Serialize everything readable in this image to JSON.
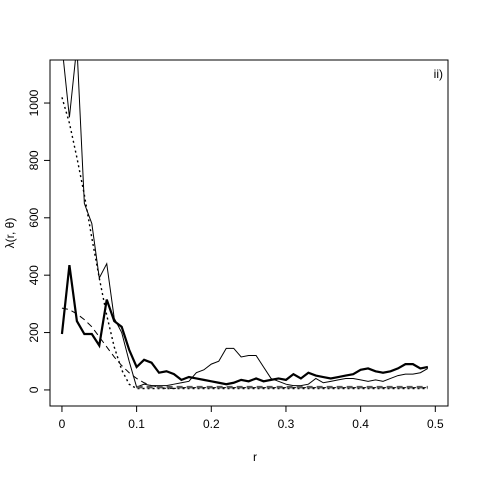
{
  "chart_data": {
    "type": "line",
    "x_label": "r",
    "y_label": "λ(r, θ)",
    "annotation": "ii)",
    "x": [
      0,
      0.01,
      0.02,
      0.03,
      0.04,
      0.05,
      0.06,
      0.07,
      0.08,
      0.09,
      0.1,
      0.11,
      0.12,
      0.13,
      0.14,
      0.15,
      0.16,
      0.17,
      0.18,
      0.19,
      0.2,
      0.21,
      0.22,
      0.23,
      0.24,
      0.25,
      0.26,
      0.27,
      0.28,
      0.29,
      0.3,
      0.31,
      0.32,
      0.33,
      0.34,
      0.35,
      0.36,
      0.37,
      0.38,
      0.39,
      0.4,
      0.41,
      0.42,
      0.43,
      0.44,
      0.45,
      0.46,
      0.47,
      0.48,
      0.49
    ],
    "series": [
      {
        "color": "#000000",
        "width": 1,
        "dash": "none",
        "values": [
          1200,
          950,
          1200,
          650,
          580,
          390,
          440,
          250,
          200,
          100,
          10,
          20,
          15,
          15,
          15,
          20,
          25,
          30,
          60,
          70,
          90,
          100,
          145,
          145,
          115,
          120,
          120,
          80,
          40,
          30,
          20,
          15,
          15,
          20,
          40,
          25,
          30,
          35,
          40,
          40,
          35,
          30,
          35,
          30,
          40,
          50,
          55,
          55,
          60,
          75
        ]
      },
      {
        "color": "#000000",
        "width": 2.2,
        "dash": "none",
        "values": [
          195,
          435,
          240,
          195,
          195,
          155,
          315,
          240,
          220,
          140,
          80,
          105,
          95,
          60,
          65,
          55,
          35,
          45,
          40,
          35,
          30,
          25,
          20,
          25,
          35,
          30,
          40,
          30,
          35,
          40,
          35,
          55,
          40,
          60,
          50,
          45,
          40,
          45,
          50,
          55,
          70,
          75,
          65,
          60,
          65,
          75,
          90,
          90,
          75,
          80
        ]
      },
      {
        "color": "#000000",
        "width": 1.4,
        "dash": "2 3",
        "values": [
          1020,
          930,
          810,
          680,
          530,
          390,
          260,
          150,
          70,
          20,
          5,
          5,
          5,
          5,
          5,
          5,
          5,
          5,
          5,
          5,
          5,
          5,
          5,
          5,
          5,
          5,
          5,
          5,
          5,
          5,
          5,
          5,
          5,
          5,
          5,
          5,
          5,
          5,
          5,
          5,
          5,
          5,
          5,
          5,
          5,
          5,
          5,
          5,
          5,
          5
        ]
      },
      {
        "color": "#000000",
        "width": 1,
        "dash": "6 4",
        "values": [
          285,
          280,
          265,
          245,
          220,
          185,
          150,
          115,
          85,
          60,
          40,
          25,
          15,
          10,
          5,
          5,
          8,
          8,
          8,
          8,
          8,
          8,
          8,
          8,
          8,
          8,
          8,
          8,
          8,
          8,
          8,
          8,
          8,
          8,
          8,
          8,
          8,
          8,
          8,
          8,
          8,
          8,
          8,
          8,
          8,
          8,
          8,
          8,
          8,
          8
        ]
      },
      {
        "color": "#555555",
        "width": 2.5,
        "dash": "6 4",
        "values": [
          null,
          null,
          null,
          null,
          null,
          null,
          null,
          null,
          null,
          null,
          10,
          10,
          10,
          10,
          10,
          10,
          10,
          10,
          10,
          10,
          10,
          10,
          10,
          10,
          10,
          10,
          10,
          10,
          10,
          10,
          10,
          10,
          10,
          10,
          10,
          10,
          10,
          10,
          10,
          10,
          10,
          10,
          10,
          10,
          10,
          10,
          10,
          10,
          10,
          10
        ]
      }
    ],
    "xlim": [
      -0.016,
      0.517
    ],
    "ylim": [
      -56,
      1150
    ],
    "xticks": [
      0,
      0.1,
      0.2,
      0.3,
      0.4,
      0.5
    ],
    "yticks": [
      0,
      200,
      400,
      600,
      800,
      1000
    ]
  }
}
